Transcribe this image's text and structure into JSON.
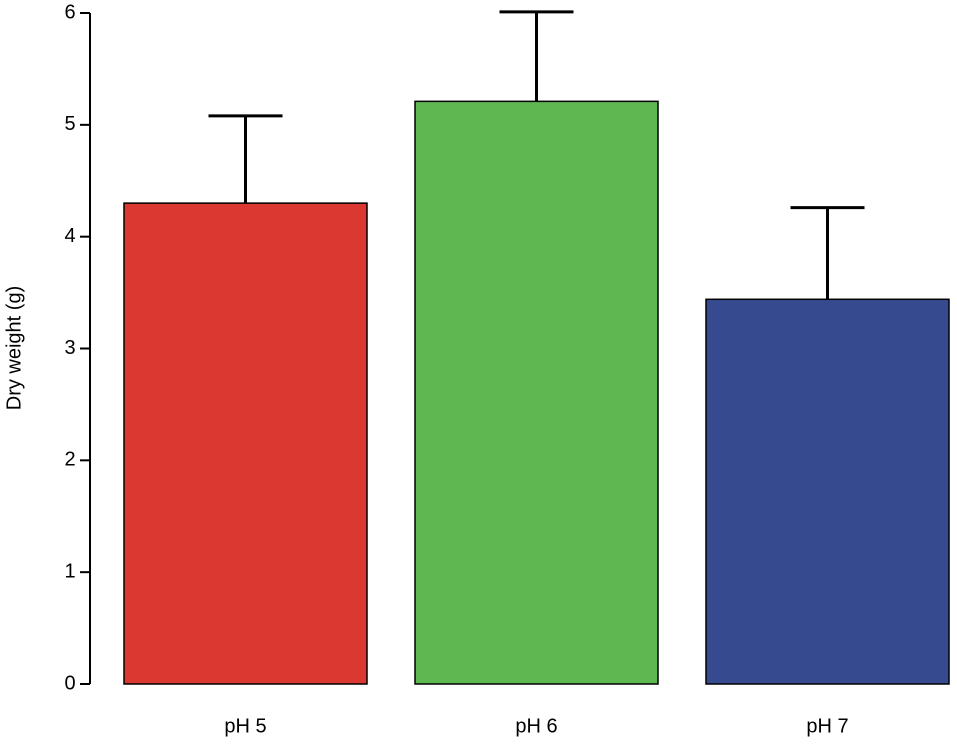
{
  "chart_data": {
    "type": "bar",
    "y_label": "Dry weight (g)",
    "categories": [
      "pH 5",
      "pH 6",
      "pH 7"
    ],
    "values": [
      4.3,
      5.21,
      3.44
    ],
    "errors": [
      0.78,
      0.8,
      0.82
    ],
    "colors": [
      "#dc3832",
      "#5fb751",
      "#364b8f"
    ],
    "ylim": [
      0,
      6
    ],
    "yticks": [
      0,
      1,
      2,
      3,
      4,
      5,
      6
    ],
    "grid": false
  }
}
